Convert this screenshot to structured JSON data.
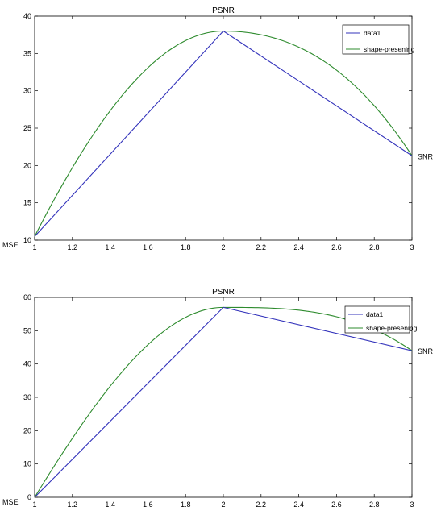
{
  "chart_data": [
    {
      "type": "line",
      "title": "PSNR",
      "xlabel": "",
      "ylabel": "",
      "corner_label": "MSE",
      "end_label": "SNR",
      "xlim": [
        1,
        3
      ],
      "ylim": [
        10,
        40
      ],
      "xticks": [
        1,
        1.2,
        1.4,
        1.6,
        1.8,
        2,
        2.2,
        2.4,
        2.6,
        2.8,
        3
      ],
      "xtick_labels": [
        "1",
        "1.2",
        "1.4",
        "1.6",
        "1.8",
        "2",
        "2.2",
        "2.4",
        "2.6",
        "2.8",
        "3"
      ],
      "yticks": [
        10,
        15,
        20,
        25,
        30,
        35,
        40
      ],
      "ytick_labels": [
        "10",
        "15",
        "20",
        "25",
        "30",
        "35",
        "40"
      ],
      "grid": false,
      "legend": "top-right",
      "series": [
        {
          "name": "data1",
          "color": "#3333bb",
          "style": "linear",
          "x": [
            1,
            2,
            3
          ],
          "y": [
            10.5,
            38.0,
            21.3
          ]
        },
        {
          "name": "shape-presening",
          "color": "#2e8b2e",
          "style": "smooth",
          "x": [
            1,
            2,
            3
          ],
          "y": [
            10.5,
            38.0,
            21.3
          ]
        }
      ]
    },
    {
      "type": "line",
      "title": "PSNR",
      "xlabel": "",
      "ylabel": "",
      "corner_label": "MSE",
      "end_label": "SNR",
      "xlim": [
        1,
        3
      ],
      "ylim": [
        0,
        60
      ],
      "xticks": [
        1,
        1.2,
        1.4,
        1.6,
        1.8,
        2,
        2.2,
        2.4,
        2.6,
        2.8,
        3
      ],
      "xtick_labels": [
        "1",
        "1.2",
        "1.4",
        "1.6",
        "1.8",
        "2",
        "2.2",
        "2.4",
        "2.6",
        "2.8",
        "3"
      ],
      "yticks": [
        0,
        10,
        20,
        30,
        40,
        50,
        60
      ],
      "ytick_labels": [
        "0",
        "10",
        "20",
        "30",
        "40",
        "50",
        "60"
      ],
      "grid": false,
      "legend": "top-right",
      "series": [
        {
          "name": "data1",
          "color": "#3333bb",
          "style": "linear",
          "x": [
            1,
            2,
            3
          ],
          "y": [
            0,
            57.0,
            44.0
          ]
        },
        {
          "name": "shape-presening",
          "color": "#2e8b2e",
          "style": "smooth",
          "x": [
            1,
            2,
            3
          ],
          "y": [
            0,
            57.0,
            44.0
          ]
        }
      ]
    }
  ]
}
